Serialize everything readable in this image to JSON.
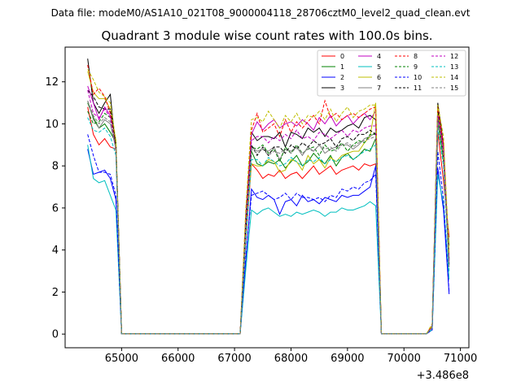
{
  "suptitle": "Data file: modeM0/AS1A10_021T08_9000004118_28706cztM0_level2_quad_clean.evt",
  "chart_data": {
    "type": "line",
    "title": "Quadrant 3 module wise count rates with 100.0s bins.",
    "xlabel": "",
    "ylabel": "",
    "x_offset_label": "+3.486e8",
    "xlim": [
      64000,
      71150
    ],
    "ylim": [
      -0.65,
      13.65
    ],
    "xticks": [
      65000,
      66000,
      67000,
      68000,
      69000,
      70000,
      71000
    ],
    "yticks": [
      0,
      2,
      4,
      6,
      8,
      10,
      12
    ],
    "grid": false,
    "legend_position": "top-right",
    "legend_columns": 4,
    "x": [
      64400,
      64500,
      64600,
      64700,
      64800,
      64900,
      65000,
      65100,
      65200,
      65300,
      65400,
      65500,
      65600,
      65700,
      65800,
      65900,
      66000,
      66100,
      66200,
      66300,
      66400,
      66500,
      66600,
      66700,
      66800,
      66900,
      67000,
      67100,
      67200,
      67300,
      67400,
      67500,
      67600,
      67700,
      67800,
      67900,
      68000,
      68100,
      68200,
      68300,
      68400,
      68500,
      68600,
      68700,
      68800,
      68900,
      69000,
      69100,
      69200,
      69300,
      69400,
      69500,
      69600,
      69700,
      69800,
      69900,
      70000,
      70100,
      70200,
      70300,
      70400,
      70500,
      70600,
      70700,
      70800
    ],
    "series": [
      {
        "name": "0",
        "color": "#ff0000",
        "dash": false,
        "values": [
          10.8,
          9.5,
          9.0,
          9.3,
          8.9,
          8.8,
          0.02,
          0.02,
          0.02,
          0.02,
          0.02,
          0.02,
          0.02,
          0.02,
          0.02,
          0.02,
          0.02,
          0.02,
          0.02,
          0.02,
          0.02,
          0.02,
          0.02,
          0.02,
          0.02,
          0.02,
          0.02,
          0.02,
          4.5,
          8.1,
          7.8,
          7.4,
          7.6,
          7.5,
          7.8,
          7.4,
          7.6,
          7.7,
          7.4,
          7.7,
          8.0,
          7.6,
          7.8,
          8.0,
          7.6,
          7.8,
          7.9,
          8.0,
          7.8,
          8.1,
          8.0,
          8.1,
          0.02,
          0.02,
          0.02,
          0.02,
          0.02,
          0.02,
          0.02,
          0.02,
          0.02,
          0.3,
          9.6,
          7.3,
          4.6
        ]
      },
      {
        "name": "1",
        "color": "#008000",
        "dash": false,
        "values": [
          11.0,
          10.3,
          9.8,
          10.0,
          9.6,
          9.1,
          0.02,
          0.02,
          0.02,
          0.02,
          0.02,
          0.02,
          0.02,
          0.02,
          0.02,
          0.02,
          0.02,
          0.02,
          0.02,
          0.02,
          0.02,
          0.02,
          0.02,
          0.02,
          0.02,
          0.02,
          0.02,
          0.02,
          4.8,
          8.7,
          8.1,
          8.0,
          8.2,
          8.1,
          8.3,
          7.9,
          8.2,
          8.5,
          8.0,
          8.2,
          8.6,
          8.3,
          8.1,
          8.5,
          8.0,
          8.4,
          8.6,
          8.3,
          8.5,
          8.8,
          8.7,
          9.3,
          0.02,
          0.02,
          0.02,
          0.02,
          0.02,
          0.02,
          0.02,
          0.02,
          0.02,
          0.3,
          10.1,
          8.2,
          4.2
        ]
      },
      {
        "name": "2",
        "color": "#0000ff",
        "dash": false,
        "values": [
          8.8,
          7.6,
          7.7,
          7.8,
          7.4,
          6.4,
          0.02,
          0.02,
          0.02,
          0.02,
          0.02,
          0.02,
          0.02,
          0.02,
          0.02,
          0.02,
          0.02,
          0.02,
          0.02,
          0.02,
          0.02,
          0.02,
          0.02,
          0.02,
          0.02,
          0.02,
          0.02,
          0.02,
          3.5,
          6.9,
          6.5,
          6.4,
          6.6,
          6.4,
          5.7,
          6.3,
          6.4,
          6.1,
          6.6,
          6.3,
          6.4,
          6.2,
          6.5,
          6.4,
          6.3,
          6.6,
          6.5,
          6.6,
          6.6,
          6.8,
          7.0,
          8.0,
          0.02,
          0.02,
          0.02,
          0.02,
          0.02,
          0.02,
          0.02,
          0.02,
          0.02,
          0.2,
          7.9,
          5.9,
          1.9
        ]
      },
      {
        "name": "3",
        "color": "#000000",
        "dash": false,
        "values": [
          13.1,
          11.0,
          10.5,
          11.0,
          11.4,
          8.7,
          0.02,
          0.02,
          0.02,
          0.02,
          0.02,
          0.02,
          0.02,
          0.02,
          0.02,
          0.02,
          0.02,
          0.02,
          0.02,
          0.02,
          0.02,
          0.02,
          0.02,
          0.02,
          0.02,
          0.02,
          0.02,
          0.02,
          5.6,
          9.6,
          9.2,
          9.4,
          9.4,
          9.3,
          9.6,
          8.9,
          9.6,
          9.5,
          9.3,
          9.8,
          9.6,
          9.8,
          9.4,
          9.8,
          9.6,
          9.7,
          9.9,
          10.0,
          9.8,
          10.3,
          10.4,
          10.2,
          0.02,
          0.02,
          0.02,
          0.02,
          0.02,
          0.02,
          0.02,
          0.02,
          0.02,
          0.4,
          11.0,
          9.0,
          3.5
        ]
      },
      {
        "name": "4",
        "color": "#c000c0",
        "dash": false,
        "values": [
          11.8,
          11.0,
          10.2,
          10.8,
          10.4,
          9.2,
          0.02,
          0.02,
          0.02,
          0.02,
          0.02,
          0.02,
          0.02,
          0.02,
          0.02,
          0.02,
          0.02,
          0.02,
          0.02,
          0.02,
          0.02,
          0.02,
          0.02,
          0.02,
          0.02,
          0.02,
          0.02,
          0.02,
          5.2,
          9.5,
          10.1,
          9.7,
          10.0,
          10.2,
          9.8,
          10.0,
          10.1,
          9.9,
          10.2,
          10.0,
          9.7,
          10.3,
          10.0,
          10.4,
          9.9,
          10.2,
          10.4,
          10.0,
          10.3,
          10.5,
          10.2,
          10.6,
          0.02,
          0.02,
          0.02,
          0.02,
          0.02,
          0.02,
          0.02,
          0.02,
          0.02,
          0.4,
          10.5,
          8.8,
          3.4
        ]
      },
      {
        "name": "5",
        "color": "#00bfbf",
        "dash": false,
        "values": [
          9.0,
          7.4,
          7.2,
          7.3,
          6.6,
          5.9,
          0.02,
          0.02,
          0.02,
          0.02,
          0.02,
          0.02,
          0.02,
          0.02,
          0.02,
          0.02,
          0.02,
          0.02,
          0.02,
          0.02,
          0.02,
          0.02,
          0.02,
          0.02,
          0.02,
          0.02,
          0.02,
          0.02,
          3.1,
          5.9,
          5.7,
          5.9,
          6.0,
          5.8,
          5.6,
          5.7,
          5.6,
          5.8,
          5.7,
          5.8,
          5.9,
          5.8,
          5.6,
          5.8,
          5.8,
          6.0,
          5.9,
          5.9,
          6.0,
          6.1,
          6.3,
          6.1,
          0.02,
          0.02,
          0.02,
          0.02,
          0.02,
          0.02,
          0.02,
          0.02,
          0.02,
          0.2,
          7.6,
          6.2,
          2.6
        ]
      },
      {
        "name": "6",
        "color": "#bfbf00",
        "dash": false,
        "values": [
          12.5,
          11.5,
          11.2,
          11.2,
          10.7,
          9.2,
          0.02,
          0.02,
          0.02,
          0.02,
          0.02,
          0.02,
          0.02,
          0.02,
          0.02,
          0.02,
          0.02,
          0.02,
          0.02,
          0.02,
          0.02,
          0.02,
          0.02,
          0.02,
          0.02,
          0.02,
          0.02,
          0.02,
          4.9,
          8.1,
          8.0,
          8.0,
          8.3,
          8.2,
          7.7,
          7.8,
          8.3,
          8.2,
          7.8,
          8.5,
          8.1,
          8.3,
          7.9,
          8.4,
          8.2,
          8.5,
          8.6,
          8.7,
          8.7,
          9.1,
          9.4,
          11.0,
          0.02,
          0.02,
          0.02,
          0.02,
          0.02,
          0.02,
          0.02,
          0.02,
          0.02,
          0.4,
          10.7,
          8.3,
          3.9
        ]
      },
      {
        "name": "7",
        "color": "#808080",
        "dash": false,
        "values": [
          11.1,
          10.2,
          9.8,
          10.2,
          10.0,
          8.8,
          0.02,
          0.02,
          0.02,
          0.02,
          0.02,
          0.02,
          0.02,
          0.02,
          0.02,
          0.02,
          0.02,
          0.02,
          0.02,
          0.02,
          0.02,
          0.02,
          0.02,
          0.02,
          0.02,
          0.02,
          0.02,
          0.02,
          5.0,
          8.9,
          8.7,
          8.8,
          8.7,
          8.9,
          8.3,
          8.8,
          8.7,
          8.9,
          8.5,
          8.9,
          8.7,
          9.0,
          8.6,
          8.8,
          8.9,
          9.0,
          9.0,
          8.8,
          9.0,
          9.3,
          9.4,
          9.6,
          0.02,
          0.02,
          0.02,
          0.02,
          0.02,
          0.02,
          0.02,
          0.02,
          0.02,
          0.3,
          10.2,
          8.4,
          3.2
        ]
      },
      {
        "name": "8",
        "color": "#ff0000",
        "dash": true,
        "values": [
          12.8,
          11.4,
          11.7,
          11.3,
          10.5,
          9.0,
          0.02,
          0.02,
          0.02,
          0.02,
          0.02,
          0.02,
          0.02,
          0.02,
          0.02,
          0.02,
          0.02,
          0.02,
          0.02,
          0.02,
          0.02,
          0.02,
          0.02,
          0.02,
          0.02,
          0.02,
          0.02,
          0.02,
          5.8,
          9.7,
          10.5,
          9.6,
          9.8,
          10.0,
          9.4,
          10.2,
          9.6,
          10.1,
          9.8,
          10.1,
          10.4,
          10.0,
          11.1,
          10.3,
          10.5,
          10.2,
          10.4,
          10.5,
          10.3,
          10.5,
          10.7,
          10.8,
          0.02,
          0.02,
          0.02,
          0.02,
          0.02,
          0.02,
          0.02,
          0.02,
          0.02,
          0.4,
          10.8,
          9.0,
          3.6
        ]
      },
      {
        "name": "9",
        "color": "#008000",
        "dash": true,
        "values": [
          10.6,
          10.0,
          10.1,
          10.5,
          10.3,
          8.9,
          0.02,
          0.02,
          0.02,
          0.02,
          0.02,
          0.02,
          0.02,
          0.02,
          0.02,
          0.02,
          0.02,
          0.02,
          0.02,
          0.02,
          0.02,
          0.02,
          0.02,
          0.02,
          0.02,
          0.02,
          0.02,
          0.02,
          4.9,
          8.9,
          8.8,
          9.0,
          8.6,
          8.8,
          8.2,
          8.9,
          8.6,
          9.0,
          8.6,
          8.8,
          8.9,
          8.5,
          9.0,
          8.7,
          8.8,
          9.1,
          8.7,
          9.0,
          9.2,
          9.1,
          9.5,
          9.5,
          0.02,
          0.02,
          0.02,
          0.02,
          0.02,
          0.02,
          0.02,
          0.02,
          0.02,
          0.3,
          10.3,
          8.4,
          3.5
        ]
      },
      {
        "name": "10",
        "color": "#0000ff",
        "dash": true,
        "values": [
          9.5,
          8.5,
          7.7,
          7.7,
          7.6,
          6.6,
          0.02,
          0.02,
          0.02,
          0.02,
          0.02,
          0.02,
          0.02,
          0.02,
          0.02,
          0.02,
          0.02,
          0.02,
          0.02,
          0.02,
          0.02,
          0.02,
          0.02,
          0.02,
          0.02,
          0.02,
          0.02,
          0.02,
          3.7,
          6.6,
          6.7,
          6.8,
          6.6,
          6.4,
          6.5,
          6.7,
          6.4,
          6.7,
          6.5,
          6.5,
          6.4,
          6.5,
          6.3,
          6.6,
          6.5,
          6.9,
          6.8,
          7.0,
          6.9,
          7.2,
          7.3,
          7.6,
          0.02,
          0.02,
          0.02,
          0.02,
          0.02,
          0.02,
          0.02,
          0.02,
          0.02,
          0.2,
          8.7,
          6.4,
          2.0
        ]
      },
      {
        "name": "11",
        "color": "#000000",
        "dash": true,
        "values": [
          11.6,
          11.3,
          10.8,
          10.7,
          10.7,
          9.1,
          0.02,
          0.02,
          0.02,
          0.02,
          0.02,
          0.02,
          0.02,
          0.02,
          0.02,
          0.02,
          0.02,
          0.02,
          0.02,
          0.02,
          0.02,
          0.02,
          0.02,
          0.02,
          0.02,
          0.02,
          0.02,
          0.02,
          5.1,
          9.0,
          8.5,
          8.9,
          8.5,
          8.9,
          8.9,
          8.6,
          9.0,
          8.8,
          9.1,
          8.9,
          9.2,
          9.0,
          9.1,
          9.3,
          8.9,
          9.3,
          9.4,
          9.2,
          9.5,
          9.5,
          9.7,
          9.5,
          0.02,
          0.02,
          0.02,
          0.02,
          0.02,
          0.02,
          0.02,
          0.02,
          0.02,
          0.3,
          10.6,
          8.7,
          3.3
        ]
      },
      {
        "name": "12",
        "color": "#c000c0",
        "dash": true,
        "values": [
          11.6,
          10.5,
          10.3,
          10.7,
          10.3,
          8.8,
          0.02,
          0.02,
          0.02,
          0.02,
          0.02,
          0.02,
          0.02,
          0.02,
          0.02,
          0.02,
          0.02,
          0.02,
          0.02,
          0.02,
          0.02,
          0.02,
          0.02,
          0.02,
          0.02,
          0.02,
          0.02,
          0.02,
          5.0,
          9.2,
          9.4,
          9.4,
          9.1,
          9.4,
          9.2,
          9.5,
          9.3,
          9.7,
          9.3,
          9.4,
          9.2,
          9.6,
          9.5,
          9.3,
          9.5,
          9.7,
          9.4,
          9.7,
          9.6,
          9.8,
          9.9,
          9.9,
          0.02,
          0.02,
          0.02,
          0.02,
          0.02,
          0.02,
          0.02,
          0.02,
          0.02,
          0.3,
          10.4,
          8.8,
          3.4
        ]
      },
      {
        "name": "13",
        "color": "#00bfbf",
        "dash": true,
        "values": [
          10.3,
          9.7,
          9.6,
          9.8,
          9.4,
          8.5,
          0.02,
          0.02,
          0.02,
          0.02,
          0.02,
          0.02,
          0.02,
          0.02,
          0.02,
          0.02,
          0.02,
          0.02,
          0.02,
          0.02,
          0.02,
          0.02,
          0.02,
          0.02,
          0.02,
          0.02,
          0.02,
          0.02,
          4.4,
          8.3,
          8.3,
          8.0,
          8.4,
          8.2,
          8.0,
          8.1,
          8.4,
          8.2,
          8.0,
          8.3,
          8.2,
          8.4,
          8.1,
          8.3,
          8.2,
          8.4,
          8.5,
          8.3,
          8.5,
          8.7,
          8.8,
          9.0,
          0.02,
          0.02,
          0.02,
          0.02,
          0.02,
          0.02,
          0.02,
          0.02,
          0.02,
          0.3,
          9.8,
          8.0,
          3.0
        ]
      },
      {
        "name": "14",
        "color": "#bfbf00",
        "dash": true,
        "values": [
          12.6,
          12.1,
          11.5,
          11.3,
          11.0,
          9.2,
          0.02,
          0.02,
          0.02,
          0.02,
          0.02,
          0.02,
          0.02,
          0.02,
          0.02,
          0.02,
          0.02,
          0.02,
          0.02,
          0.02,
          0.02,
          0.02,
          0.02,
          0.02,
          0.02,
          0.02,
          0.02,
          0.02,
          6.0,
          10.2,
          10.3,
          10.1,
          10.6,
          10.2,
          9.8,
          10.4,
          10.1,
          10.5,
          10.0,
          10.4,
          10.3,
          10.6,
          10.2,
          10.7,
          10.1,
          10.5,
          10.8,
          10.3,
          10.6,
          10.7,
          10.9,
          10.9,
          0.02,
          0.02,
          0.02,
          0.02,
          0.02,
          0.02,
          0.02,
          0.02,
          0.02,
          0.5,
          10.9,
          9.4,
          3.8
        ]
      },
      {
        "name": "15",
        "color": "#808080",
        "dash": true,
        "values": [
          11.1,
          10.4,
          10.0,
          10.3,
          10.1,
          8.8,
          0.02,
          0.02,
          0.02,
          0.02,
          0.02,
          0.02,
          0.02,
          0.02,
          0.02,
          0.02,
          0.02,
          0.02,
          0.02,
          0.02,
          0.02,
          0.02,
          0.02,
          0.02,
          0.02,
          0.02,
          0.02,
          0.02,
          4.9,
          8.8,
          8.6,
          8.8,
          8.5,
          8.7,
          8.6,
          8.8,
          8.6,
          8.9,
          8.6,
          8.8,
          8.7,
          9.0,
          8.8,
          8.9,
          8.7,
          9.0,
          9.1,
          8.9,
          9.1,
          9.2,
          9.3,
          9.4,
          0.02,
          0.02,
          0.02,
          0.02,
          0.02,
          0.02,
          0.02,
          0.02,
          0.02,
          0.3,
          10.1,
          8.4,
          3.1
        ]
      }
    ]
  }
}
